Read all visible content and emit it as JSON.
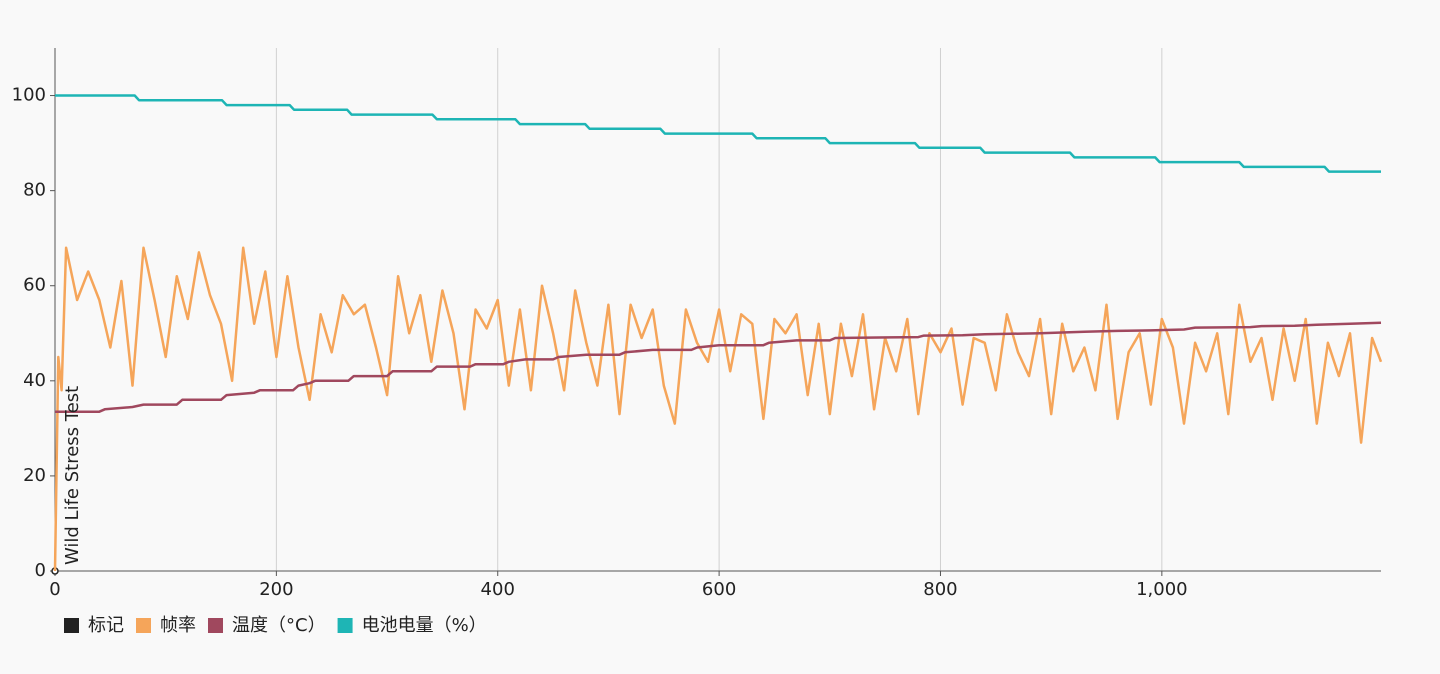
{
  "chart_data": {
    "type": "line",
    "xlim": [
      0,
      1198
    ],
    "ylim": [
      0,
      110
    ],
    "xticks": [
      0,
      200,
      400,
      600,
      800,
      {
        "value": 1000,
        "label": "1,000"
      }
    ],
    "yticks": [
      0,
      20,
      40,
      60,
      80,
      100
    ],
    "grid": "x",
    "legend": "bottom-left",
    "annotations": [
      {
        "text": "Wild Life Stress Test",
        "x": 0
      }
    ],
    "series": [
      {
        "name": "标记",
        "color": "#222222",
        "x": [
          0
        ],
        "values": [
          0
        ]
      },
      {
        "name": "帧率",
        "color": "#f5a55a",
        "x": [
          0,
          3,
          6,
          10,
          20,
          30,
          40,
          50,
          60,
          70,
          80,
          90,
          100,
          110,
          120,
          130,
          140,
          150,
          160,
          170,
          180,
          190,
          200,
          210,
          220,
          230,
          240,
          250,
          260,
          270,
          280,
          290,
          300,
          310,
          320,
          330,
          340,
          350,
          360,
          370,
          380,
          390,
          400,
          410,
          420,
          430,
          440,
          450,
          460,
          470,
          480,
          490,
          500,
          510,
          520,
          530,
          540,
          550,
          560,
          570,
          580,
          590,
          600,
          610,
          620,
          630,
          640,
          650,
          660,
          670,
          680,
          690,
          700,
          710,
          720,
          730,
          740,
          750,
          760,
          770,
          780,
          790,
          800,
          810,
          820,
          830,
          840,
          850,
          860,
          870,
          880,
          890,
          900,
          910,
          920,
          930,
          940,
          950,
          960,
          970,
          980,
          990,
          1000,
          1010,
          1020,
          1030,
          1040,
          1050,
          1060,
          1070,
          1080,
          1090,
          1100,
          1110,
          1120,
          1130,
          1140,
          1150,
          1160,
          1170,
          1180,
          1190,
          1198
        ],
        "values": [
          0,
          45,
          38,
          68,
          57,
          63,
          57,
          47,
          61,
          39,
          68,
          57,
          45,
          62,
          53,
          67,
          58,
          52,
          40,
          68,
          52,
          63,
          45,
          62,
          47,
          36,
          54,
          46,
          58,
          54,
          56,
          47,
          37,
          62,
          50,
          58,
          44,
          59,
          50,
          34,
          55,
          51,
          57,
          39,
          55,
          38,
          60,
          50,
          38,
          59,
          48,
          39,
          56,
          33,
          56,
          49,
          55,
          39,
          31,
          55,
          48,
          44,
          55,
          42,
          54,
          52,
          32,
          53,
          50,
          54,
          37,
          52,
          33,
          52,
          41,
          54,
          34,
          49,
          42,
          53,
          33,
          50,
          46,
          51,
          35,
          49,
          48,
          38,
          54,
          46,
          41,
          53,
          33,
          52,
          42,
          47,
          38,
          56,
          32,
          46,
          50,
          35,
          53,
          47,
          31,
          48,
          42,
          50,
          33,
          56,
          44,
          49,
          36,
          51,
          40,
          53,
          31,
          48,
          41,
          50,
          27,
          49,
          44
        ]
      },
      {
        "name": "温度（°C）",
        "color": "#a0485e",
        "x": [
          0,
          40,
          45,
          70,
          80,
          110,
          115,
          150,
          155,
          180,
          185,
          215,
          220,
          230,
          235,
          265,
          270,
          300,
          305,
          340,
          345,
          375,
          380,
          405,
          410,
          425,
          450,
          455,
          480,
          510,
          515,
          540,
          575,
          580,
          600,
          640,
          645,
          670,
          700,
          705,
          780,
          785,
          820,
          840,
          890,
          930,
          960,
          990,
          1020,
          1030,
          1080,
          1090,
          1120,
          1140,
          1170,
          1198
        ],
        "values": [
          33.5,
          33.5,
          34,
          34.5,
          35,
          35,
          36,
          36,
          37,
          37.5,
          38,
          38,
          39,
          39.5,
          40,
          40,
          41,
          41,
          42,
          42,
          43,
          43,
          43.5,
          43.5,
          44,
          44.5,
          44.5,
          45,
          45.5,
          45.5,
          46,
          46.5,
          46.5,
          47,
          47.5,
          47.5,
          48,
          48.5,
          48.5,
          49,
          49.2,
          49.5,
          49.6,
          49.8,
          50,
          50.3,
          50.5,
          50.6,
          50.8,
          51.2,
          51.3,
          51.5,
          51.6,
          51.8,
          52,
          52.2
        ]
      },
      {
        "name": "电池电量（%）",
        "color": "#1eb5b5",
        "x": [
          0,
          72,
          76,
          151,
          155,
          212,
          216,
          264,
          268,
          341,
          345,
          416,
          420,
          479,
          483,
          547,
          551,
          630,
          634,
          696,
          700,
          777,
          781,
          836,
          840,
          917,
          921,
          994,
          998,
          1070,
          1074,
          1147,
          1151,
          1198
        ],
        "values": [
          100,
          100,
          99,
          99,
          98,
          98,
          97,
          97,
          96,
          96,
          95,
          95,
          94,
          94,
          93,
          93,
          92,
          92,
          91,
          91,
          90,
          90,
          89,
          89,
          88,
          88,
          87,
          87,
          86,
          86,
          85,
          85,
          84,
          84
        ]
      }
    ]
  }
}
